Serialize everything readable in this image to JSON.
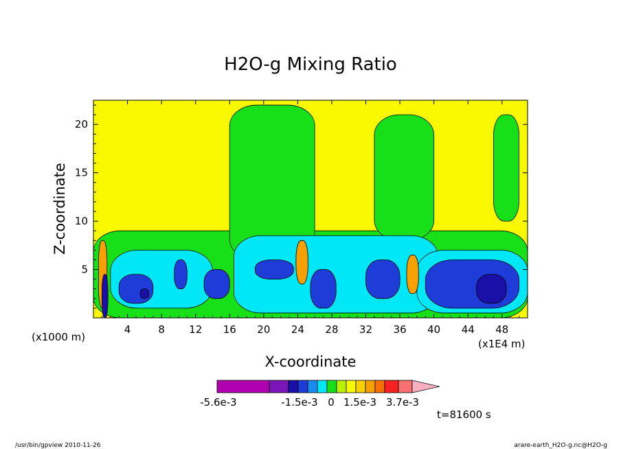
{
  "chart_data": {
    "type": "heatmap",
    "title": "H2O-g Mixing Ratio",
    "xlabel": "X-coordinate",
    "ylabel": "Z-coordinate",
    "x_unit_left": "(x1000 m)",
    "x_unit_right": "(x1E4 m)",
    "x_ticks": [
      "4",
      "8",
      "12",
      "16",
      "20",
      "24",
      "28",
      "32",
      "36",
      "40",
      "44",
      "48"
    ],
    "y_ticks": [
      "5",
      "10",
      "15",
      "20"
    ],
    "xlim": [
      0,
      51
    ],
    "ylim": [
      0,
      22.5
    ],
    "colorbar": {
      "labels": [
        "-5.6e-3",
        "-1.5e-3",
        "0",
        "1.5e-3",
        "3.7e-3"
      ],
      "colors": [
        "#b000b0",
        "#7a16b8",
        "#1a10a8",
        "#1e3cd8",
        "#1a8cf0",
        "#00e8f8",
        "#18e018",
        "#b8f000",
        "#f8f800",
        "#f8d000",
        "#f8a000",
        "#f87000",
        "#f82020",
        "#f87070",
        "#f8b0c0"
      ]
    },
    "time_label": "t=81600 s",
    "regions": [
      {
        "level": "green",
        "color": "#18e018",
        "x": [
          0,
          51
        ],
        "z": [
          0,
          9
        ]
      },
      {
        "level": "green",
        "color": "#18e018",
        "x": [
          16,
          26
        ],
        "z": [
          6,
          22
        ]
      },
      {
        "level": "green",
        "color": "#18e018",
        "x": [
          33,
          40
        ],
        "z": [
          8,
          21
        ]
      },
      {
        "level": "green",
        "color": "#18e018",
        "x": [
          47,
          50
        ],
        "z": [
          10,
          21
        ]
      },
      {
        "level": "cyan",
        "color": "#00e8f8",
        "x": [
          2,
          14
        ],
        "z": [
          1,
          7
        ]
      },
      {
        "level": "cyan",
        "color": "#00e8f8",
        "x": [
          16.5,
          40.5
        ],
        "z": [
          0.5,
          8.5
        ]
      },
      {
        "level": "cyan",
        "color": "#00e8f8",
        "x": [
          38,
          51
        ],
        "z": [
          0.5,
          7
        ]
      },
      {
        "level": "blue",
        "color": "#1e3cd8",
        "x": [
          3,
          7
        ],
        "z": [
          1.5,
          4.5
        ]
      },
      {
        "level": "blue",
        "color": "#1e3cd8",
        "x": [
          9.5,
          11
        ],
        "z": [
          3,
          6
        ]
      },
      {
        "level": "blue",
        "color": "#1e3cd8",
        "x": [
          13,
          16
        ],
        "z": [
          2,
          5
        ]
      },
      {
        "level": "blue",
        "color": "#1e3cd8",
        "x": [
          19,
          23.5
        ],
        "z": [
          4,
          6
        ]
      },
      {
        "level": "blue",
        "color": "#1e3cd8",
        "x": [
          25.5,
          28.5
        ],
        "z": [
          1,
          5
        ]
      },
      {
        "level": "blue",
        "color": "#1e3cd8",
        "x": [
          32,
          36
        ],
        "z": [
          2,
          6
        ]
      },
      {
        "level": "blue",
        "color": "#1e3cd8",
        "x": [
          39,
          50
        ],
        "z": [
          1,
          6
        ]
      },
      {
        "level": "dark-blue",
        "color": "#1a10a8",
        "x": [
          45,
          48.5
        ],
        "z": [
          1.5,
          4.5
        ]
      },
      {
        "level": "dark-blue",
        "color": "#1a10a8",
        "x": [
          5.5,
          6.5
        ],
        "z": [
          2,
          3
        ]
      },
      {
        "level": "orange",
        "color": "#f8a000",
        "x": [
          23.8,
          25.2
        ],
        "z": [
          3.5,
          8
        ]
      },
      {
        "level": "orange",
        "color": "#f8a000",
        "x": [
          36.8,
          38.2
        ],
        "z": [
          2.5,
          6.5
        ]
      },
      {
        "level": "orange",
        "color": "#f8a000",
        "x": [
          0.6,
          1.6
        ],
        "z": [
          1,
          8
        ]
      },
      {
        "level": "dark-blue",
        "color": "#1a10a8",
        "x": [
          1.0,
          1.7
        ],
        "z": [
          0,
          4.5
        ]
      }
    ]
  },
  "footer": {
    "left": "/usr/bin/gpview  2010-11-26",
    "right": "arare-earth_H2O-g.nc@H2O-g"
  }
}
